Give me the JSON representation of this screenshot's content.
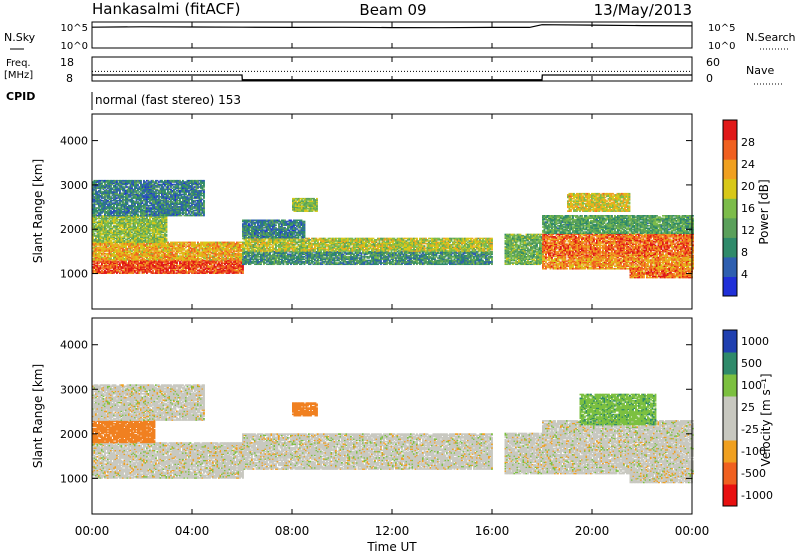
{
  "header": {
    "station": "Hankasalmi (fitACF)",
    "beam": "Beam 09",
    "date": "13/May/2013"
  },
  "noise_panel": {
    "left_label": "N.Sky",
    "right_label": "N.Search",
    "ytick_top": "10^5",
    "ytick_bottom": "10^0"
  },
  "freq_panel": {
    "left_label_1": "Freq.",
    "left_label_2": "[MHz]",
    "left_ticks": [
      "18",
      "8"
    ],
    "right_label": "Nave",
    "right_ticks": [
      "60",
      "0"
    ],
    "cpid_label": "CPID",
    "cpid_text": "normal (fast stereo) 153"
  },
  "x_axis": {
    "label": "Time UT",
    "ticks": [
      "00:00",
      "04:00",
      "08:00",
      "12:00",
      "16:00",
      "20:00",
      "00:00"
    ]
  },
  "power_panel": {
    "ylabel": "Slant Range [km]",
    "yticks": [
      "1000",
      "2000",
      "3000",
      "4000"
    ],
    "cbar_label": "Power [dB]",
    "cbar_ticks": [
      "28",
      "24",
      "20",
      "16",
      "12",
      "8",
      "4"
    ]
  },
  "velocity_panel": {
    "ylabel": "Slant Range [km]",
    "yticks": [
      "1000",
      "2000",
      "3000",
      "4000"
    ],
    "cbar_label": "Velocity [m s⁻¹]",
    "cbar_ticks": [
      "1000",
      "500",
      "100",
      "25",
      "-25",
      "-100",
      "-500",
      "-1000"
    ]
  },
  "chart_data": [
    {
      "type": "line",
      "title": "N.Sky / N.Search",
      "x": [
        0,
        2,
        4,
        6,
        8,
        10,
        12,
        14,
        16,
        17.5,
        18,
        20,
        22,
        24
      ],
      "series": [
        {
          "name": "N.Sky",
          "values": [
            10000,
            12000,
            11000,
            10000,
            9000,
            9500,
            8500,
            8000,
            9000,
            9000,
            30000,
            25000,
            20000,
            18000
          ]
        }
      ],
      "xlim": [
        0,
        24
      ],
      "ylim": [
        1,
        100000
      ],
      "ylog": true
    },
    {
      "type": "line",
      "title": "Freq. / Nave",
      "x": [
        0,
        6,
        6.01,
        18,
        18.01,
        24
      ],
      "series": [
        {
          "name": "Freq.",
          "values": [
            10.5,
            10.5,
            8.5,
            8.5,
            10.5,
            10.5
          ]
        },
        {
          "name": "Nave",
          "values": [
            24,
            24,
            24,
            24,
            24,
            24
          ]
        }
      ],
      "xlim": [
        0,
        24
      ]
    },
    {
      "type": "heatmap",
      "title": "Power [dB]",
      "x_unit": "hours UT",
      "y_unit": "km",
      "xlim": [
        0,
        24
      ],
      "ylim": [
        200,
        4600
      ],
      "bands": [
        {
          "t0": 0.0,
          "t1": 6.0,
          "r0": 1000,
          "r1": 1300,
          "value": 28
        },
        {
          "t0": 0.0,
          "t1": 6.0,
          "r0": 1300,
          "r1": 1700,
          "value": 22
        },
        {
          "t0": 0.0,
          "t1": 3.0,
          "r0": 1700,
          "r1": 2300,
          "value": 16
        },
        {
          "t0": 0.0,
          "t1": 4.5,
          "r0": 2300,
          "r1": 3100,
          "value": 8
        },
        {
          "t0": 6.0,
          "t1": 16.0,
          "r0": 1200,
          "r1": 1500,
          "value": 10
        },
        {
          "t0": 6.0,
          "t1": 16.0,
          "r0": 1500,
          "r1": 1800,
          "value": 18
        },
        {
          "t0": 6.0,
          "t1": 8.5,
          "r0": 1800,
          "r1": 2200,
          "value": 8
        },
        {
          "t0": 8.0,
          "t1": 9.0,
          "r0": 2400,
          "r1": 2700,
          "value": 16
        },
        {
          "t0": 16.5,
          "t1": 18.0,
          "r0": 1200,
          "r1": 1900,
          "value": 14
        },
        {
          "t0": 18.0,
          "t1": 24.0,
          "r0": 1100,
          "r1": 1400,
          "value": 24
        },
        {
          "t0": 18.0,
          "t1": 24.0,
          "r0": 1400,
          "r1": 1900,
          "value": 26
        },
        {
          "t0": 18.0,
          "t1": 24.0,
          "r0": 1900,
          "r1": 2300,
          "value": 12
        },
        {
          "t0": 19.0,
          "t1": 21.5,
          "r0": 2400,
          "r1": 2800,
          "value": 20
        },
        {
          "t0": 21.5,
          "t1": 24.0,
          "r0": 900,
          "r1": 1100,
          "value": 26
        }
      ],
      "colorbar": {
        "label": "Power [dB]",
        "range": [
          0,
          32
        ]
      }
    },
    {
      "type": "heatmap",
      "title": "Velocity [m s-1]",
      "x_unit": "hours UT",
      "y_unit": "km",
      "xlim": [
        0,
        24
      ],
      "ylim": [
        200,
        4600
      ],
      "bands": [
        {
          "t0": 0.0,
          "t1": 6.0,
          "r0": 1000,
          "r1": 1800,
          "value": 0
        },
        {
          "t0": 0.0,
          "t1": 2.5,
          "r0": 1800,
          "r1": 2300,
          "value": -300
        },
        {
          "t0": 0.0,
          "t1": 4.5,
          "r0": 2300,
          "r1": 3100,
          "value": 0
        },
        {
          "t0": 6.0,
          "t1": 16.0,
          "r0": 1200,
          "r1": 2000,
          "value": 0
        },
        {
          "t0": 8.0,
          "t1": 9.0,
          "r0": 2400,
          "r1": 2700,
          "value": -300
        },
        {
          "t0": 16.5,
          "t1": 24.0,
          "r0": 1100,
          "r1": 2000,
          "value": 0
        },
        {
          "t0": 18.0,
          "t1": 24.0,
          "r0": 2000,
          "r1": 2300,
          "value": 0
        },
        {
          "t0": 19.5,
          "t1": 22.5,
          "r0": 2200,
          "r1": 2900,
          "value": 80
        },
        {
          "t0": 21.5,
          "t1": 24.0,
          "r0": 900,
          "r1": 1100,
          "value": 0
        }
      ],
      "colorbar": {
        "label": "Velocity [m s-1]",
        "range": [
          -1000,
          1000
        ]
      }
    }
  ]
}
